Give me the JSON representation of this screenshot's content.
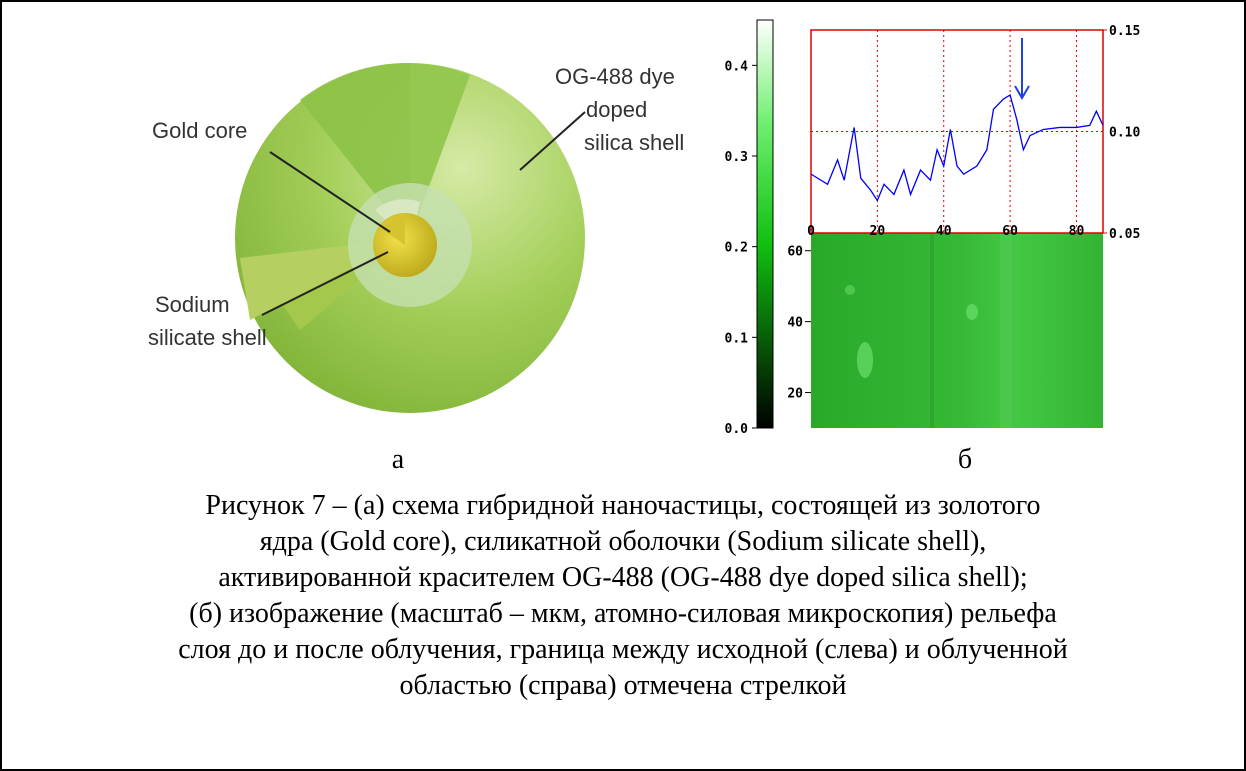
{
  "panel_a": {
    "labels": {
      "gold_core": "Gold core",
      "dye_shell": [
        "OG-488 dye",
        "doped",
        "silica shell"
      ],
      "sodium_shell": [
        "Sodium",
        "silicate shell"
      ]
    },
    "caption": "а"
  },
  "panel_b": {
    "caption": "б",
    "colorbar": {
      "ylim": [
        0,
        0.45
      ],
      "yticks": [
        {
          "value": 0,
          "label": "0.0"
        },
        {
          "value": 0.1,
          "label": "0.1"
        },
        {
          "value": 0.2,
          "label": "0.2"
        },
        {
          "value": 0.3,
          "label": "0.3"
        },
        {
          "value": 0.4,
          "label": "0.4"
        }
      ]
    },
    "profile": {
      "type": "line",
      "color": "#0000ff",
      "xlim": [
        0,
        88
      ],
      "xticks": [
        0,
        20,
        40,
        60,
        80
      ],
      "ylim": [
        0.05,
        0.15
      ],
      "yticks": [
        {
          "value": 0.05,
          "label": "0.05"
        },
        {
          "value": 0.1,
          "label": "0.10"
        },
        {
          "value": 0.15,
          "label": "0.15"
        }
      ],
      "grid": true,
      "x": [
        0,
        5,
        8,
        10,
        13,
        15,
        18,
        20,
        22,
        25,
        28,
        30,
        33,
        36,
        38,
        40,
        42,
        44,
        46,
        50,
        53,
        55,
        58,
        60,
        62,
        64,
        66,
        70,
        75,
        80,
        84,
        86,
        88
      ],
      "values": [
        0.079,
        0.074,
        0.086,
        0.076,
        0.102,
        0.077,
        0.071,
        0.066,
        0.074,
        0.069,
        0.081,
        0.069,
        0.081,
        0.076,
        0.091,
        0.083,
        0.101,
        0.083,
        0.079,
        0.083,
        0.091,
        0.111,
        0.116,
        0.118,
        0.106,
        0.091,
        0.098,
        0.101,
        0.102,
        0.102,
        0.103,
        0.11,
        0.103
      ]
    },
    "image": {
      "ylim": [
        10,
        65
      ],
      "yticks": [
        20,
        40,
        60
      ]
    }
  },
  "caption_lines": [
    "Рисунок 7 – (а) схема гибридной наночастицы, состоящей из золотого",
    "ядра (Gold core), силикатной оболочки (Sodium silicate shell),",
    "активированной красителем OG-488 (OG-488 dye doped silica shell);",
    "(б) изображение (масштаб – мкм, атомно-силовая микроскопия) рельефа",
    "слоя до и после облучения, граница между исходной (слева) и облученной",
    "областью (справа) отмечена стрелкой"
  ]
}
